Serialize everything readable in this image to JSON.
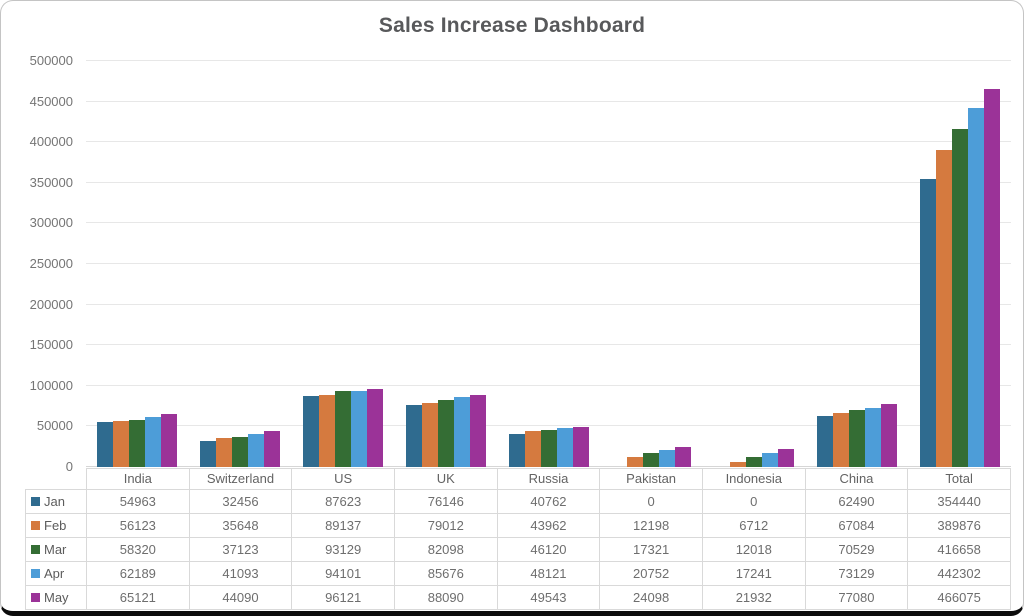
{
  "title": "Sales Increase Dashboard",
  "chart_data": {
    "type": "bar",
    "title": "Sales Increase Dashboard",
    "categories": [
      "India",
      "Switzerland",
      "US",
      "UK",
      "Russia",
      "Pakistan",
      "Indonesia",
      "China",
      "Total"
    ],
    "series": [
      {
        "name": "Jan",
        "color": "#2f6b8f",
        "values": [
          54963,
          32456,
          87623,
          76146,
          40762,
          0,
          0,
          62490,
          354440
        ]
      },
      {
        "name": "Feb",
        "color": "#d57a3f",
        "values": [
          56123,
          35648,
          89137,
          79012,
          43962,
          12198,
          6712,
          67084,
          389876
        ]
      },
      {
        "name": "Mar",
        "color": "#346d34",
        "values": [
          58320,
          37123,
          93129,
          82098,
          46120,
          17321,
          12018,
          70529,
          416658
        ]
      },
      {
        "name": "Apr",
        "color": "#4d9dd8",
        "values": [
          62189,
          41093,
          94101,
          85676,
          48121,
          20752,
          17241,
          73129,
          442302
        ]
      },
      {
        "name": "May",
        "color": "#9b3398",
        "values": [
          65121,
          44090,
          96121,
          88090,
          49543,
          24098,
          21932,
          77080,
          466075
        ]
      }
    ],
    "xlabel": "",
    "ylabel": "",
    "ylim": [
      0,
      500000
    ],
    "ytick_step": 50000,
    "grid": true,
    "legend_position": "table-left"
  },
  "colors": {
    "title_text": "#58595b",
    "axis_text": "#757575",
    "table_text": "#6e6e6e",
    "table_border": "#d9d9d9",
    "gridline": "#e7e7e7"
  }
}
